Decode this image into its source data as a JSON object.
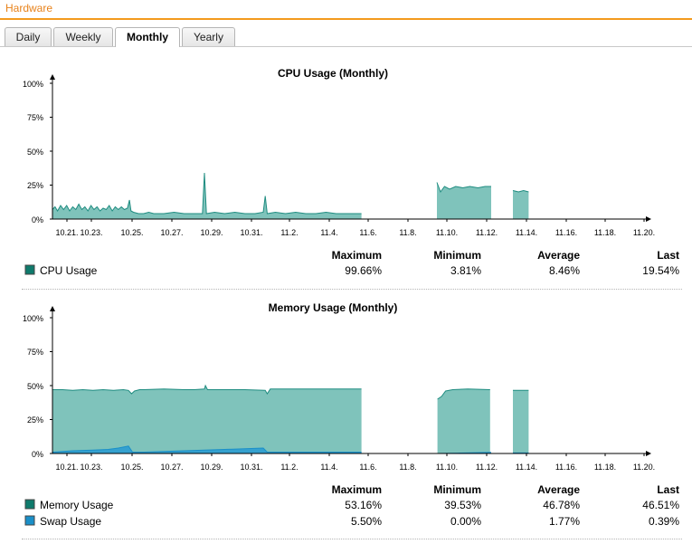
{
  "header": {
    "title": "Hardware"
  },
  "tabs": [
    {
      "label": "Daily",
      "active": false
    },
    {
      "label": "Weekly",
      "active": false
    },
    {
      "label": "Monthly",
      "active": true
    },
    {
      "label": "Yearly",
      "active": false
    }
  ],
  "colors": {
    "accent": "#f39a1e",
    "cpu_fill": "#7fc3bb",
    "cpu_line": "#1f8c80",
    "cpu_legend": "#0f7a6c",
    "swap_fill": "#35a1cf",
    "swap_legend": "#1a8fc8"
  },
  "stat_headers": [
    "Maximum",
    "Minimum",
    "Average",
    "Last"
  ],
  "charts": [
    {
      "title": "CPU Usage (Monthly)",
      "y_ticks": [
        "100%",
        "75%",
        "50%",
        "25%",
        "0%"
      ],
      "x_ticks": [
        "10.21.",
        "10.23.",
        "10.25.",
        "10.27.",
        "10.29.",
        "10.31.",
        "11.2.",
        "11.4.",
        "11.6.",
        "11.8.",
        "11.10.",
        "11.12.",
        "11.14.",
        "11.16.",
        "11.18.",
        "11.20."
      ],
      "legend": [
        {
          "label": "CPU Usage",
          "maximum": "99.66%",
          "minimum": "3.81%",
          "average": "8.46%",
          "last": "19.54%"
        }
      ]
    },
    {
      "title": "Memory Usage (Monthly)",
      "y_ticks": [
        "100%",
        "75%",
        "50%",
        "25%",
        "0%"
      ],
      "x_ticks": [
        "10.21.",
        "10.23.",
        "10.25.",
        "10.27.",
        "10.29.",
        "10.31.",
        "11.2.",
        "11.4.",
        "11.6.",
        "11.8.",
        "11.10.",
        "11.12.",
        "11.14.",
        "11.16.",
        "11.18.",
        "11.20."
      ],
      "legend": [
        {
          "label": "Memory Usage",
          "maximum": "53.16%",
          "minimum": "39.53%",
          "average": "46.78%",
          "last": "46.51%"
        },
        {
          "label": "Swap Usage",
          "maximum": "5.50%",
          "minimum": "0.00%",
          "average": "1.77%",
          "last": "0.39%"
        }
      ]
    }
  ],
  "chart_data": [
    {
      "type": "area",
      "title": "CPU Usage (Monthly)",
      "x_range": [
        "10.20.",
        "11.20."
      ],
      "ylim": [
        0,
        100
      ],
      "y_unit": "%",
      "grid": false,
      "legend_position": "bottom",
      "series": [
        {
          "name": "CPU Usage",
          "segments": [
            [
              [
                10.0,
                7
              ],
              [
                10.25,
                9
              ],
              [
                10.5,
                6
              ],
              [
                10.8,
                10
              ],
              [
                11.1,
                7
              ],
              [
                11.4,
                10
              ],
              [
                11.7,
                6
              ],
              [
                12.0,
                9
              ],
              [
                12.3,
                7
              ],
              [
                12.6,
                11
              ],
              [
                12.9,
                7
              ],
              [
                13.2,
                9
              ],
              [
                13.5,
                6
              ],
              [
                13.8,
                10
              ],
              [
                14.1,
                7
              ],
              [
                14.4,
                9
              ],
              [
                14.7,
                6
              ],
              [
                15.0,
                8
              ],
              [
                15.3,
                7
              ],
              [
                15.6,
                10
              ],
              [
                15.9,
                6
              ],
              [
                16.2,
                9
              ],
              [
                16.5,
                7
              ],
              [
                16.8,
                9
              ],
              [
                17.1,
                7
              ],
              [
                17.4,
                8
              ],
              [
                17.6,
                14
              ],
              [
                17.75,
                6
              ],
              [
                18.0,
                5
              ],
              [
                18.5,
                4
              ],
              [
                19.0,
                4
              ],
              [
                19.5,
                5
              ],
              [
                20.0,
                4
              ],
              [
                21.0,
                4
              ],
              [
                22.0,
                5
              ],
              [
                23.0,
                4
              ],
              [
                24.0,
                4
              ],
              [
                24.8,
                4
              ],
              [
                25.0,
                34
              ],
              [
                25.2,
                4
              ],
              [
                26.0,
                5
              ],
              [
                27.0,
                4
              ],
              [
                28.0,
                5
              ],
              [
                29.0,
                4
              ],
              [
                30.0,
                4
              ],
              [
                30.8,
                5
              ],
              [
                31.0,
                17
              ],
              [
                31.2,
                4
              ],
              [
                32.0,
                5
              ],
              [
                33.0,
                4
              ],
              [
                34.0,
                5
              ],
              [
                35.0,
                4
              ],
              [
                36.0,
                4
              ],
              [
                37.0,
                5
              ],
              [
                38.0,
                4
              ],
              [
                39.0,
                4
              ],
              [
                40.5,
                4
              ]
            ],
            [
              [
                42.0,
                0
              ],
              [
                44.0,
                0
              ],
              [
                46.0,
                0
              ],
              [
                47.9,
                0
              ]
            ],
            [
              [
                47.95,
                27
              ],
              [
                48.3,
                20
              ],
              [
                48.7,
                24
              ],
              [
                49.2,
                22
              ],
              [
                49.8,
                24
              ],
              [
                50.5,
                23
              ],
              [
                51.2,
                24
              ],
              [
                52.0,
                23
              ],
              [
                52.7,
                24
              ],
              [
                53.3,
                24
              ]
            ],
            [
              [
                53.4,
                0
              ],
              [
                55.0,
                0
              ],
              [
                55.4,
                0
              ]
            ],
            [
              [
                55.45,
                21
              ],
              [
                56.0,
                20
              ],
              [
                56.5,
                21
              ],
              [
                57.0,
                20
              ]
            ]
          ]
        }
      ],
      "stats": {
        "maximum": 99.66,
        "minimum": 3.81,
        "average": 8.46,
        "last": 19.54
      }
    },
    {
      "type": "area",
      "title": "Memory Usage (Monthly)",
      "x_range": [
        "10.20.",
        "11.20."
      ],
      "ylim": [
        0,
        100
      ],
      "y_unit": "%",
      "grid": false,
      "legend_position": "bottom",
      "series": [
        {
          "name": "Memory Usage",
          "segments": [
            [
              [
                10.0,
                47
              ],
              [
                11.0,
                47
              ],
              [
                12.0,
                46.5
              ],
              [
                13.0,
                47
              ],
              [
                14.0,
                46.5
              ],
              [
                15.0,
                47
              ],
              [
                16.0,
                46.5
              ],
              [
                17.0,
                47
              ],
              [
                17.5,
                46.5
              ],
              [
                17.8,
                44
              ],
              [
                18.1,
                46
              ],
              [
                18.6,
                47
              ],
              [
                19.0,
                47
              ],
              [
                21.0,
                47.5
              ],
              [
                23.0,
                47
              ],
              [
                24.0,
                47
              ],
              [
                25.0,
                47.5
              ],
              [
                25.1,
                50
              ],
              [
                25.3,
                47
              ],
              [
                27.0,
                47
              ],
              [
                29.0,
                47
              ],
              [
                31.0,
                46.5
              ],
              [
                31.2,
                44
              ],
              [
                31.5,
                47.5
              ],
              [
                33.0,
                47.5
              ],
              [
                35.0,
                47.5
              ],
              [
                37.0,
                47.5
              ],
              [
                39.0,
                47.5
              ],
              [
                40.5,
                47.5
              ]
            ],
            [
              [
                40.6,
                0
              ],
              [
                46.0,
                0
              ],
              [
                47.9,
                0
              ]
            ],
            [
              [
                48.0,
                40
              ],
              [
                48.4,
                42
              ],
              [
                48.8,
                46
              ],
              [
                49.5,
                47
              ],
              [
                51.0,
                47.5
              ],
              [
                53.2,
                47
              ]
            ],
            [
              [
                53.4,
                0
              ],
              [
                55.4,
                0
              ]
            ],
            [
              [
                55.45,
                46.5
              ],
              [
                57.0,
                46.5
              ]
            ]
          ]
        },
        {
          "name": "Swap Usage",
          "segments": [
            [
              [
                10.0,
                1
              ],
              [
                12.0,
                2
              ],
              [
                14.0,
                2.5
              ],
              [
                15.5,
                3
              ],
              [
                16.5,
                4
              ],
              [
                17.5,
                5.5
              ],
              [
                17.9,
                1
              ],
              [
                19.0,
                1
              ],
              [
                21.0,
                1.5
              ],
              [
                23.0,
                2
              ],
              [
                25.0,
                2.5
              ],
              [
                27.0,
                3
              ],
              [
                29.0,
                3.5
              ],
              [
                30.8,
                4
              ],
              [
                31.2,
                1
              ],
              [
                33.0,
                1
              ],
              [
                36.0,
                1
              ],
              [
                38.0,
                1
              ],
              [
                40.5,
                1
              ]
            ],
            [
              [
                40.6,
                0
              ],
              [
                46.0,
                0
              ],
              [
                48.0,
                0
              ],
              [
                50.0,
                0.3
              ],
              [
                53.3,
                0.8
              ]
            ],
            [
              [
                53.4,
                0
              ],
              [
                55.4,
                0
              ]
            ],
            [
              [
                55.45,
                0.4
              ],
              [
                57.0,
                0.4
              ]
            ]
          ]
        }
      ],
      "stats": [
        {
          "series": "Memory Usage",
          "maximum": 53.16,
          "minimum": 39.53,
          "average": 46.78,
          "last": 46.51
        },
        {
          "series": "Swap Usage",
          "maximum": 5.5,
          "minimum": 0.0,
          "average": 1.77,
          "last": 0.39
        }
      ]
    }
  ]
}
